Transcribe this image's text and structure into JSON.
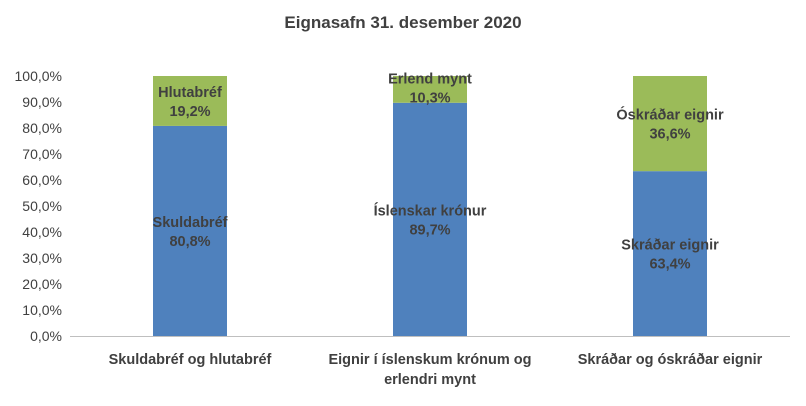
{
  "chart_data": {
    "type": "bar",
    "stacked": true,
    "title": "Eignasafn 31. desember 2020",
    "xlabel": "",
    "ylabel": "",
    "ylim": [
      0,
      100
    ],
    "y_ticks": [
      "0,0%",
      "10,0%",
      "20,0%",
      "30,0%",
      "40,0%",
      "50,0%",
      "60,0%",
      "70,0%",
      "80,0%",
      "90,0%",
      "100,0%"
    ],
    "y_tick_values": [
      0,
      10,
      20,
      30,
      40,
      50,
      60,
      70,
      80,
      90,
      100
    ],
    "grid": false,
    "categories": [
      [
        "Skuldabréf og hlutabréf"
      ],
      [
        "Eignir í íslenskum krónum og",
        "erlendri mynt"
      ],
      [
        "Skráðar og óskráðar eignir"
      ]
    ],
    "bars": [
      {
        "segments": [
          {
            "label": "Skuldabréf",
            "value": 80.8,
            "value_label": "80,8%",
            "color": "#4f81bd"
          },
          {
            "label": "Hlutabréf",
            "value": 19.2,
            "value_label": "19,2%",
            "color": "#9bbb59"
          }
        ]
      },
      {
        "segments": [
          {
            "label": "Íslenskar krónur",
            "value": 89.7,
            "value_label": "89,7%",
            "color": "#4f81bd"
          },
          {
            "label": "Erlend mynt",
            "value": 10.3,
            "value_label": "10,3%",
            "color": "#9bbb59"
          }
        ]
      },
      {
        "segments": [
          {
            "label": "Skráðar eignir",
            "value": 63.4,
            "value_label": "63,4%",
            "color": "#4f81bd"
          },
          {
            "label": "Óskráðar eignir",
            "value": 36.6,
            "value_label": "36,6%",
            "color": "#9bbb59"
          }
        ]
      }
    ],
    "colors": {
      "axis": "#bfbfbf",
      "text": "#404040"
    }
  }
}
